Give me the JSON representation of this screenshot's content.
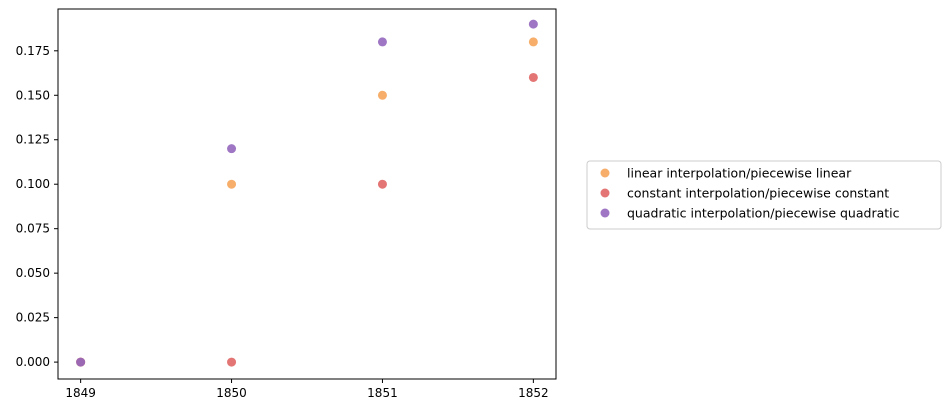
{
  "chart_data": {
    "type": "scatter",
    "title": "",
    "xlabel": "",
    "ylabel": "",
    "x_ticks": [
      "1849",
      "1850",
      "1851",
      "1852"
    ],
    "y_ticks": [
      "0.000",
      "0.025",
      "0.050",
      "0.075",
      "0.100",
      "0.125",
      "0.150",
      "0.175"
    ],
    "xlim": [
      1848.85,
      1852.15
    ],
    "ylim": [
      -0.0095,
      0.1985
    ],
    "grid": false,
    "legend_position": "outside-right",
    "series": [
      {
        "name": "linear interpolation/piecewise linear",
        "color": "#f5a55a",
        "points": [
          {
            "x": 1849,
            "y": 0.0
          },
          {
            "x": 1850,
            "y": 0.1
          },
          {
            "x": 1851,
            "y": 0.15
          },
          {
            "x": 1852,
            "y": 0.18
          }
        ]
      },
      {
        "name": "constant interpolation/piecewise constant",
        "color": "#e06666",
        "points": [
          {
            "x": 1849,
            "y": 0.0
          },
          {
            "x": 1850,
            "y": 0.0
          },
          {
            "x": 1851,
            "y": 0.1
          },
          {
            "x": 1852,
            "y": 0.16
          }
        ]
      },
      {
        "name": "quadratic interpolation/piecewise quadratic",
        "color": "#9467bd",
        "points": [
          {
            "x": 1849,
            "y": 0.0
          },
          {
            "x": 1850,
            "y": 0.12
          },
          {
            "x": 1851,
            "y": 0.18
          },
          {
            "x": 1852,
            "y": 0.19
          }
        ]
      }
    ]
  }
}
